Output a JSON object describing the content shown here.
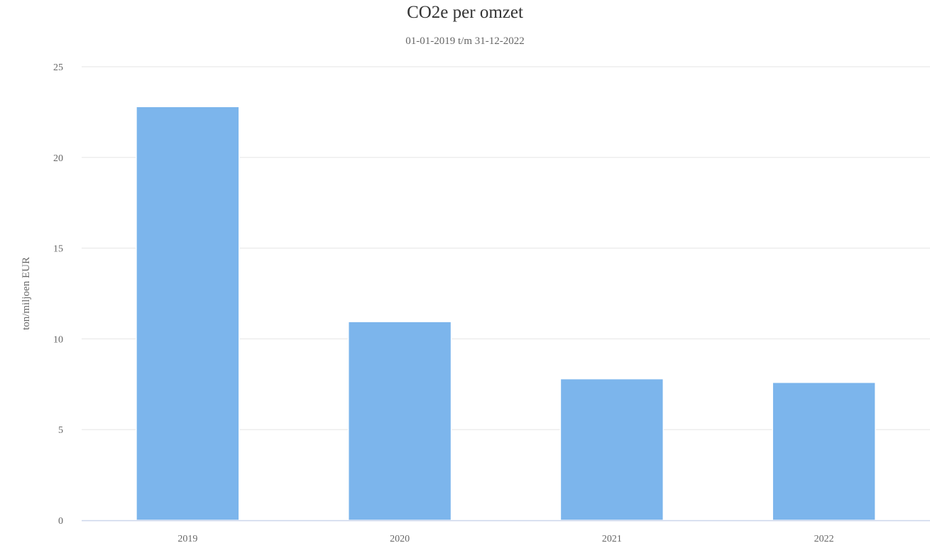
{
  "chart_data": {
    "type": "bar",
    "title": "CO2e per omzet",
    "subtitle": "01-01-2019 t/m 31-12-2022",
    "ylabel": "ton/miljoen EUR",
    "xlabel": "",
    "categories": [
      "2019",
      "2020",
      "2021",
      "2022"
    ],
    "values": [
      22.8,
      10.95,
      7.8,
      7.6
    ],
    "ylim": [
      0,
      25
    ],
    "yticks": [
      0,
      5,
      10,
      15,
      20,
      25
    ],
    "grid": true,
    "legend": "none",
    "colors": {
      "bar": "#7cb5ec",
      "grid": "#e6e6e6",
      "axis": "#ccd6eb",
      "text": "#666666"
    }
  }
}
